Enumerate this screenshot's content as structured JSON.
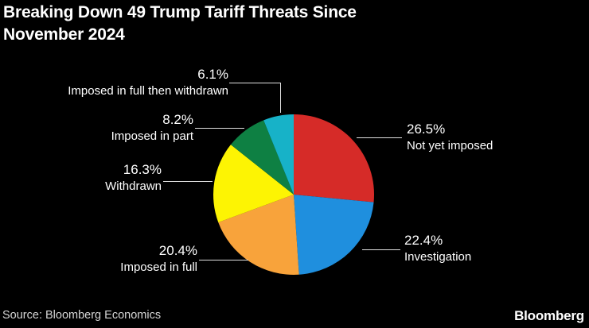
{
  "title": {
    "line1": "Breaking Down 49 Trump Tariff Threats Since",
    "line2": "November 2024",
    "full": "Breaking Down 49 Trump Tariff Threats Since November 2024"
  },
  "source": "Source: Bloomberg Economics",
  "brand": "Bloomberg",
  "colors": {
    "background": "#000000",
    "text": "#ffffff",
    "source_text": "#d6d6d6",
    "leader_line": "#e0e0e0"
  },
  "chart_data": {
    "type": "pie",
    "title": "Breaking Down 49 Trump Tariff Threats Since November 2024",
    "legend_position": "callout-labels",
    "start_angle_deg": -90,
    "direction": "clockwise",
    "slices": [
      {
        "label": "Not yet imposed",
        "pct": 26.5,
        "pct_label": "26.5%",
        "color": "#d62b28"
      },
      {
        "label": "Investigation",
        "pct": 22.4,
        "pct_label": "22.4%",
        "color": "#1f8fde"
      },
      {
        "label": "Imposed in full",
        "pct": 20.4,
        "pct_label": "20.4%",
        "color": "#f8a33b"
      },
      {
        "label": "Withdrawn",
        "pct": 16.3,
        "pct_label": "16.3%",
        "color": "#fdf403"
      },
      {
        "label": "Imposed in part",
        "pct": 8.2,
        "pct_label": "8.2%",
        "color": "#0e8043"
      },
      {
        "label": "Imposed in full then withdrawn",
        "pct": 6.1,
        "pct_label": "6.1%",
        "color": "#17b2c8"
      }
    ]
  }
}
